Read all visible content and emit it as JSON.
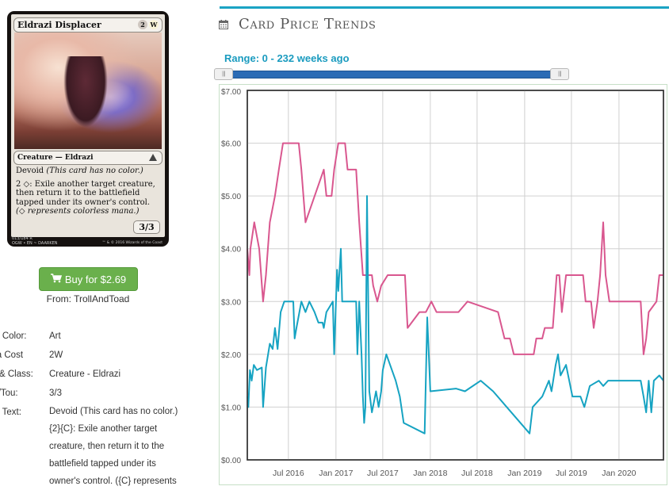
{
  "card": {
    "name": "Eldrazi Displacer",
    "mana_cost_symbols": [
      "2",
      "W"
    ],
    "type_line": "Creature — Eldrazi",
    "rules_line1": "Devoid ",
    "rules_line1_italic": "(This card has no color.)",
    "rules_line2": "2 ◇: Exile another target creature, then return it to the battlefield tapped under its owner's control.",
    "rules_line3_italic": "(◇ represents colorless mana.)",
    "power_toughness": "3/3",
    "collector_line1": "013/184 R",
    "collector_line2": "OGW • EN ~ DAARKEN",
    "copyright": "™ & © 2016 Wizards of the Coast"
  },
  "buy_button": {
    "label": "Buy for $2.69",
    "icon": "cart-icon"
  },
  "from_text": "From: TrollAndToad",
  "info": {
    "color_label": "ard Color:",
    "color_value": "Art",
    "cost_label": "ana Cost",
    "cost_value": "2W",
    "type_label": "pe & Class:",
    "type_value": "Creature - Eldrazi",
    "pt_label": "ow/Tou:",
    "pt_value": "3/3",
    "text_label": "ard Text:",
    "text_value": "Devoid (This card has no color.) {2}{C}: Exile another target creature, then return it to the battlefield tapped under its owner's control. ({C} represents"
  },
  "section": {
    "title": "Card Price Trends",
    "icon": "calendar-icon"
  },
  "range_text": "Range: 0 - 232 weeks ago",
  "colors": {
    "accent": "#1aa3c4",
    "pink_series": "#d9578f",
    "blue_series": "#16a3c2",
    "button": "#6ab04c"
  },
  "chart_data": {
    "type": "line",
    "title": "",
    "xlabel": "",
    "ylabel": "",
    "ylim": [
      0,
      7
    ],
    "y_ticks": [
      "$0.00",
      "$1.00",
      "$2.00",
      "$3.00",
      "$4.00",
      "$5.00",
      "$6.00",
      "$7.00"
    ],
    "x_ticks": [
      "Jul 2016",
      "Jan 2017",
      "Jul 2017",
      "Jan 2018",
      "Jul 2018",
      "Jan 2019",
      "Jul 2019",
      "Jan 2020"
    ],
    "x_range": [
      "2016-01-24",
      "2020-06-21"
    ],
    "grid": true,
    "series": [
      {
        "color": "#d9578f",
        "points": [
          [
            "2016-01-24",
            4.0
          ],
          [
            "2016-02-01",
            3.5
          ],
          [
            "2016-02-05",
            4.0
          ],
          [
            "2016-02-20",
            4.5
          ],
          [
            "2016-03-10",
            4.0
          ],
          [
            "2016-03-25",
            3.0
          ],
          [
            "2016-04-05",
            3.5
          ],
          [
            "2016-04-20",
            4.5
          ],
          [
            "2016-05-10",
            5.0
          ],
          [
            "2016-05-25",
            5.5
          ],
          [
            "2016-06-10",
            6.0
          ],
          [
            "2016-08-10",
            6.0
          ],
          [
            "2016-08-20",
            5.5
          ],
          [
            "2016-09-05",
            4.5
          ],
          [
            "2016-11-15",
            5.5
          ],
          [
            "2016-11-25",
            5.0
          ],
          [
            "2016-12-15",
            5.0
          ],
          [
            "2016-12-25",
            5.5
          ],
          [
            "2017-01-10",
            6.0
          ],
          [
            "2017-02-05",
            6.0
          ],
          [
            "2017-02-15",
            5.5
          ],
          [
            "2017-03-20",
            5.5
          ],
          [
            "2017-04-01",
            4.5
          ],
          [
            "2017-04-15",
            3.5
          ],
          [
            "2017-05-20",
            3.5
          ],
          [
            "2017-05-25",
            3.3
          ],
          [
            "2017-06-10",
            3.0
          ],
          [
            "2017-06-25",
            3.3
          ],
          [
            "2017-07-20",
            3.5
          ],
          [
            "2017-09-25",
            3.5
          ],
          [
            "2017-10-05",
            2.5
          ],
          [
            "2017-11-20",
            2.8
          ],
          [
            "2017-12-15",
            2.8
          ],
          [
            "2018-01-05",
            3.0
          ],
          [
            "2018-01-25",
            2.8
          ],
          [
            "2018-04-20",
            2.8
          ],
          [
            "2018-05-25",
            3.0
          ],
          [
            "2018-09-20",
            2.8
          ],
          [
            "2018-10-15",
            2.3
          ],
          [
            "2018-11-05",
            2.3
          ],
          [
            "2018-11-20",
            2.0
          ],
          [
            "2019-02-05",
            2.0
          ],
          [
            "2019-02-15",
            2.3
          ],
          [
            "2019-03-10",
            2.3
          ],
          [
            "2019-03-20",
            2.5
          ],
          [
            "2019-04-20",
            2.5
          ],
          [
            "2019-05-05",
            3.5
          ],
          [
            "2019-05-15",
            3.5
          ],
          [
            "2019-05-25",
            2.8
          ],
          [
            "2019-06-10",
            3.5
          ],
          [
            "2019-08-15",
            3.5
          ],
          [
            "2019-08-25",
            3.0
          ],
          [
            "2019-09-15",
            3.0
          ],
          [
            "2019-09-25",
            2.5
          ],
          [
            "2019-10-10",
            3.0
          ],
          [
            "2019-10-20",
            3.5
          ],
          [
            "2019-11-01",
            4.5
          ],
          [
            "2019-11-10",
            3.5
          ],
          [
            "2019-11-25",
            3.0
          ],
          [
            "2019-12-15",
            3.0
          ],
          [
            "2020-01-10",
            3.0
          ],
          [
            "2020-02-10",
            3.0
          ],
          [
            "2020-03-25",
            3.0
          ],
          [
            "2020-04-05",
            2.0
          ],
          [
            "2020-04-15",
            2.3
          ],
          [
            "2020-04-25",
            2.8
          ],
          [
            "2020-05-25",
            3.0
          ],
          [
            "2020-06-05",
            3.5
          ],
          [
            "2020-06-21",
            3.5
          ]
        ]
      },
      {
        "color": "#16a3c2",
        "points": [
          [
            "2016-01-24",
            1.2
          ],
          [
            "2016-01-28",
            1.0
          ],
          [
            "2016-02-03",
            1.7
          ],
          [
            "2016-02-10",
            1.5
          ],
          [
            "2016-02-18",
            1.8
          ],
          [
            "2016-03-01",
            1.7
          ],
          [
            "2016-03-20",
            1.75
          ],
          [
            "2016-03-25",
            1.0
          ],
          [
            "2016-04-05",
            1.75
          ],
          [
            "2016-04-20",
            2.2
          ],
          [
            "2016-05-01",
            2.1
          ],
          [
            "2016-05-10",
            2.5
          ],
          [
            "2016-05-20",
            2.1
          ],
          [
            "2016-06-01",
            2.8
          ],
          [
            "2016-06-15",
            3.0
          ],
          [
            "2016-07-20",
            3.0
          ],
          [
            "2016-07-25",
            2.3
          ],
          [
            "2016-08-01",
            2.5
          ],
          [
            "2016-08-20",
            3.0
          ],
          [
            "2016-09-05",
            2.8
          ],
          [
            "2016-09-20",
            3.0
          ],
          [
            "2016-10-10",
            2.8
          ],
          [
            "2016-10-25",
            2.6
          ],
          [
            "2016-11-10",
            2.6
          ],
          [
            "2016-11-15",
            2.5
          ],
          [
            "2016-11-25",
            2.8
          ],
          [
            "2016-12-20",
            3.0
          ],
          [
            "2016-12-25",
            2.0
          ],
          [
            "2017-01-05",
            3.6
          ],
          [
            "2017-01-10",
            3.2
          ],
          [
            "2017-01-20",
            4.0
          ],
          [
            "2017-01-25",
            3.0
          ],
          [
            "2017-03-20",
            3.0
          ],
          [
            "2017-03-25",
            2.0
          ],
          [
            "2017-04-01",
            3.0
          ],
          [
            "2017-04-10",
            2.0
          ],
          [
            "2017-04-15",
            1.2
          ],
          [
            "2017-04-20",
            0.7
          ],
          [
            "2017-04-25",
            1.0
          ],
          [
            "2017-05-01",
            5.0
          ],
          [
            "2017-05-10",
            1.3
          ],
          [
            "2017-05-20",
            0.9
          ],
          [
            "2017-06-05",
            1.3
          ],
          [
            "2017-06-15",
            1.0
          ],
          [
            "2017-06-25",
            1.3
          ],
          [
            "2017-07-01",
            1.7
          ],
          [
            "2017-07-15",
            2.0
          ],
          [
            "2017-08-20",
            1.5
          ],
          [
            "2017-09-05",
            1.2
          ],
          [
            "2017-09-20",
            0.7
          ],
          [
            "2017-12-10",
            0.5
          ],
          [
            "2017-12-20",
            2.7
          ],
          [
            "2018-01-01",
            1.3
          ],
          [
            "2018-04-10",
            1.35
          ],
          [
            "2018-05-15",
            1.3
          ],
          [
            "2018-07-15",
            1.5
          ],
          [
            "2018-09-01",
            1.3
          ],
          [
            "2019-01-20",
            0.5
          ],
          [
            "2019-02-01",
            1.0
          ],
          [
            "2019-03-10",
            1.2
          ],
          [
            "2019-04-05",
            1.5
          ],
          [
            "2019-04-15",
            1.3
          ],
          [
            "2019-05-01",
            1.8
          ],
          [
            "2019-05-10",
            2.0
          ],
          [
            "2019-05-20",
            1.6
          ],
          [
            "2019-06-10",
            1.8
          ],
          [
            "2019-07-05",
            1.2
          ],
          [
            "2019-08-05",
            1.2
          ],
          [
            "2019-08-20",
            1.0
          ],
          [
            "2019-09-10",
            1.4
          ],
          [
            "2019-10-15",
            1.5
          ],
          [
            "2019-11-01",
            1.4
          ],
          [
            "2019-11-20",
            1.5
          ],
          [
            "2020-03-25",
            1.5
          ],
          [
            "2020-04-05",
            1.2
          ],
          [
            "2020-04-15",
            0.9
          ],
          [
            "2020-04-25",
            1.5
          ],
          [
            "2020-05-05",
            0.9
          ],
          [
            "2020-05-15",
            1.5
          ],
          [
            "2020-06-05",
            1.6
          ],
          [
            "2020-06-21",
            1.5
          ]
        ]
      }
    ]
  }
}
